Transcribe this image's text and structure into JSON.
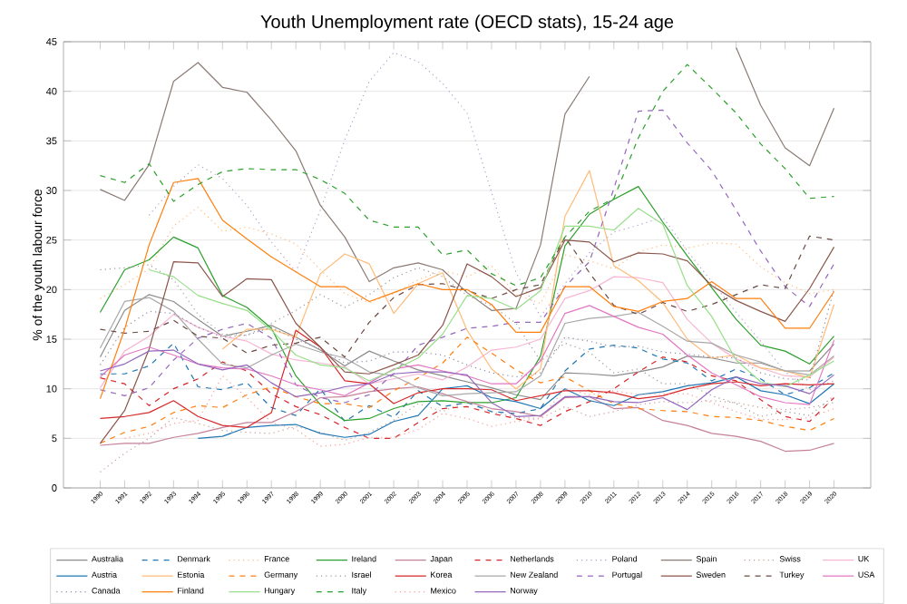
{
  "chart_data": {
    "type": "line",
    "title": "Youth Unemployment rate (OECD stats), 15-24 age",
    "ylabel": "% of the youth labour force",
    "x": [
      1990,
      1991,
      1992,
      1993,
      1994,
      1995,
      1996,
      1997,
      1998,
      1999,
      2000,
      2001,
      2002,
      2003,
      2004,
      2005,
      2006,
      2007,
      2008,
      2009,
      2010,
      2011,
      2012,
      2013,
      2014,
      2015,
      2016,
      2017,
      2018,
      2019,
      2020
    ],
    "xlim": [
      1988.5,
      2021.5
    ],
    "xticks": [
      1990,
      1991,
      1992,
      1993,
      1994,
      1995,
      1996,
      1997,
      1998,
      1999,
      2000,
      2001,
      2002,
      2003,
      2004,
      2005,
      2006,
      2007,
      2008,
      2009,
      2010,
      2011,
      2012,
      2013,
      2014,
      2015,
      2016,
      2017,
      2018,
      2019,
      2020
    ],
    "ylim": [
      0,
      45
    ],
    "yticks": [
      0,
      5,
      10,
      15,
      20,
      25,
      30,
      35,
      40,
      45
    ],
    "grid": "y",
    "legend": "bottom",
    "series": [
      {
        "name": "Australia",
        "color": "#8c8c8c",
        "line_style": "solid",
        "values": [
          13.2,
          17.9,
          19.5,
          18.8,
          17.0,
          15.3,
          15.8,
          16.4,
          15.2,
          13.9,
          12.3,
          13.8,
          12.8,
          11.9,
          11.3,
          10.7,
          10.1,
          9.4,
          8.9,
          11.6,
          11.5,
          11.3,
          11.7,
          12.2,
          13.3,
          13.1,
          12.6,
          12.6,
          11.8,
          11.8,
          14.5
        ]
      },
      {
        "name": "Austria",
        "color": "#1f77b4",
        "line_style": "solid",
        "values": [
          null,
          null,
          null,
          null,
          5.0,
          5.2,
          6.1,
          6.3,
          6.4,
          5.5,
          5.1,
          5.4,
          6.7,
          7.3,
          10.0,
          10.3,
          9.1,
          8.7,
          8.0,
          10.0,
          8.8,
          8.3,
          9.4,
          9.7,
          10.3,
          10.6,
          11.2,
          9.8,
          9.4,
          8.5,
          10.5
        ]
      },
      {
        "name": "Canada",
        "color": "#8a8aa6",
        "line_style": "dotted",
        "values": [
          12.4,
          16.2,
          17.8,
          17.6,
          16.2,
          15.2,
          15.4,
          16.2,
          15.0,
          14.0,
          12.6,
          12.8,
          13.7,
          13.7,
          13.4,
          12.4,
          11.6,
          11.2,
          11.6,
          15.2,
          14.8,
          14.2,
          14.3,
          13.7,
          13.5,
          13.2,
          13.1,
          11.6,
          11.0,
          10.9,
          20.1
        ]
      },
      {
        "name": "Denmark",
        "color": "#1f77b4",
        "line_style": "dashed",
        "values": [
          11.5,
          11.5,
          12.3,
          14.6,
          10.2,
          9.9,
          10.6,
          8.1,
          7.3,
          10.0,
          6.7,
          8.3,
          7.1,
          9.8,
          8.2,
          8.6,
          7.7,
          7.5,
          8.0,
          11.8,
          14.0,
          14.4,
          14.1,
          13.0,
          12.6,
          10.8,
          12.0,
          11.0,
          9.4,
          10.1,
          11.6
        ]
      },
      {
        "name": "Estonia",
        "color": "#ffbb78",
        "line_style": "solid",
        "values": [
          null,
          null,
          null,
          null,
          null,
          14.0,
          16.0,
          16.0,
          15.2,
          21.6,
          23.6,
          22.6,
          17.6,
          20.6,
          21.7,
          15.9,
          12.0,
          10.0,
          12.0,
          27.4,
          32.0,
          22.4,
          20.9,
          18.7,
          15.0,
          13.1,
          13.4,
          12.1,
          11.8,
          11.1,
          18.5
        ]
      },
      {
        "name": "Finland",
        "color": "#ff7f0e",
        "line_style": "solid",
        "values": [
          9.0,
          16.0,
          24.5,
          30.8,
          31.2,
          27.0,
          25.1,
          23.3,
          21.8,
          20.3,
          20.3,
          18.8,
          19.7,
          20.6,
          20.0,
          20.0,
          18.5,
          15.7,
          15.7,
          20.3,
          20.3,
          18.3,
          17.8,
          18.8,
          19.1,
          20.8,
          19.1,
          19.1,
          16.1,
          16.1,
          19.8
        ]
      },
      {
        "name": "France",
        "color": "#ffbb78",
        "line_style": "dotted",
        "values": [
          19.1,
          20.5,
          22.1,
          26.4,
          28.3,
          25.9,
          26.3,
          25.6,
          24.6,
          22.0,
          19.6,
          18.7,
          19.6,
          21.0,
          21.9,
          21.3,
          22.4,
          19.5,
          18.6,
          23.5,
          22.9,
          22.1,
          23.8,
          24.5,
          24.2,
          24.7,
          24.6,
          22.3,
          20.7,
          19.6,
          20.0
        ]
      },
      {
        "name": "Germany",
        "color": "#ff7f0e",
        "line_style": "dashed",
        "values": [
          4.5,
          5.6,
          6.2,
          7.6,
          8.3,
          8.1,
          9.4,
          10.2,
          9.2,
          8.5,
          8.5,
          8.1,
          9.8,
          11.1,
          12.6,
          15.2,
          13.6,
          11.9,
          10.6,
          11.2,
          9.8,
          8.5,
          8.0,
          7.8,
          7.7,
          7.2,
          7.1,
          6.8,
          6.2,
          5.8,
          7.0
        ]
      },
      {
        "name": "Hungary",
        "color": "#98df8a",
        "line_style": "solid",
        "values": [
          null,
          null,
          22.0,
          21.3,
          19.4,
          18.6,
          17.9,
          15.9,
          13.4,
          12.4,
          12.1,
          10.8,
          11.9,
          13.1,
          15.5,
          19.4,
          19.1,
          18.0,
          19.9,
          26.4,
          26.4,
          26.0,
          28.2,
          26.6,
          20.4,
          17.3,
          12.9,
          10.7,
          10.2,
          11.4,
          12.8
        ]
      },
      {
        "name": "Ireland",
        "color": "#2ca02c",
        "line_style": "solid",
        "values": [
          17.7,
          22.0,
          23.0,
          25.3,
          24.2,
          19.4,
          18.2,
          16.1,
          11.3,
          8.4,
          6.8,
          7.0,
          8.0,
          8.7,
          8.8,
          8.6,
          8.6,
          9.1,
          13.3,
          24.4,
          27.6,
          29.1,
          30.4,
          26.8,
          23.4,
          20.2,
          17.0,
          14.4,
          13.8,
          12.5,
          15.3
        ]
      },
      {
        "name": "Israel",
        "color": "#999999",
        "line_style": "dotted",
        "values": [
          22.0,
          22.2,
          22.5,
          21.0,
          17.5,
          15.5,
          15.4,
          16.6,
          17.9,
          19.5,
          18.2,
          19.5,
          21.2,
          22.2,
          21.3,
          19.4,
          18.4,
          16.6,
          12.8,
          14.6,
          13.7,
          11.6,
          12.0,
          10.5,
          10.5,
          9.3,
          8.5,
          7.2,
          7.7,
          7.3,
          9.3
        ]
      },
      {
        "name": "Italy",
        "color": "#2ca02c",
        "line_style": "dashed",
        "values": [
          31.5,
          30.8,
          32.7,
          28.9,
          30.6,
          31.9,
          32.2,
          32.1,
          32.1,
          31.1,
          29.7,
          27.0,
          26.3,
          26.3,
          23.5,
          24.0,
          21.6,
          20.4,
          21.2,
          25.3,
          27.9,
          29.2,
          35.3,
          40.0,
          42.7,
          40.3,
          37.8,
          34.7,
          32.2,
          29.2,
          29.4
        ]
      },
      {
        "name": "Japan",
        "color": "#c5809b",
        "line_style": "solid",
        "values": [
          4.3,
          4.5,
          4.5,
          5.1,
          5.5,
          6.1,
          6.6,
          6.6,
          7.7,
          9.1,
          9.2,
          9.7,
          10.0,
          10.2,
          9.5,
          8.7,
          8.0,
          7.7,
          7.2,
          9.1,
          9.2,
          8.0,
          8.1,
          6.8,
          6.3,
          5.5,
          5.2,
          4.7,
          3.7,
          3.8,
          4.5
        ]
      },
      {
        "name": "Korea",
        "color": "#d62728",
        "line_style": "solid",
        "values": [
          7.0,
          7.2,
          7.6,
          8.8,
          7.2,
          6.3,
          6.1,
          7.6,
          15.9,
          14.2,
          10.8,
          10.5,
          8.5,
          9.6,
          10.0,
          10.0,
          9.9,
          8.8,
          9.3,
          9.8,
          9.8,
          9.6,
          9.0,
          9.3,
          10.0,
          10.5,
          10.7,
          10.3,
          10.5,
          10.4,
          10.5
        ]
      },
      {
        "name": "Mexico",
        "color": "#ff9896",
        "line_style": "dotted",
        "values": [
          null,
          5.0,
          5.5,
          6.5,
          6.8,
          11.3,
          9.1,
          6.6,
          5.9,
          4.2,
          4.4,
          5.1,
          5.1,
          5.9,
          7.5,
          7.0,
          6.2,
          6.7,
          7.0,
          10.0,
          9.4,
          9.8,
          9.4,
          9.5,
          9.5,
          8.6,
          7.7,
          6.9,
          6.9,
          7.1,
          8.0
        ]
      },
      {
        "name": "Netherlands",
        "color": "#d62728",
        "line_style": "dashed",
        "values": [
          11.1,
          10.5,
          8.3,
          10.0,
          11.0,
          12.7,
          11.8,
          9.5,
          8.2,
          7.4,
          6.1,
          5.0,
          5.0,
          6.6,
          8.0,
          8.2,
          7.5,
          7.0,
          6.3,
          7.7,
          8.7,
          10.0,
          11.7,
          13.2,
          12.7,
          11.3,
          10.8,
          8.9,
          7.2,
          6.7,
          9.1
        ]
      },
      {
        "name": "New Zealand",
        "color": "#a8a8a8",
        "line_style": "solid",
        "values": [
          14.1,
          18.8,
          19.2,
          17.8,
          15.0,
          12.5,
          12.1,
          13.4,
          14.5,
          13.7,
          13.1,
          11.7,
          11.3,
          10.1,
          9.3,
          9.5,
          9.6,
          9.7,
          11.3,
          16.6,
          17.1,
          17.3,
          17.7,
          16.3,
          14.8,
          14.6,
          13.4,
          12.7,
          11.8,
          11.4,
          13.3
        ]
      },
      {
        "name": "Norway",
        "color": "#9467bd",
        "line_style": "solid",
        "values": [
          11.8,
          12.5,
          13.8,
          13.9,
          12.5,
          11.9,
          12.4,
          10.6,
          9.2,
          9.6,
          10.2,
          10.5,
          11.5,
          11.7,
          11.7,
          11.4,
          8.6,
          7.2,
          7.3,
          9.2,
          9.2,
          8.7,
          8.6,
          9.1,
          7.9,
          9.9,
          11.2,
          10.5,
          10.3,
          9.5,
          11.4
        ]
      },
      {
        "name": "Poland",
        "color": "#b0a0c8",
        "line_style": "dotted",
        "values": [
          null,
          null,
          27.5,
          30.4,
          32.6,
          31.2,
          28.5,
          24.8,
          21.8,
          28.0,
          35.1,
          41.0,
          43.9,
          43.0,
          40.8,
          37.8,
          29.8,
          21.7,
          17.3,
          20.6,
          23.7,
          25.8,
          26.5,
          27.3,
          23.9,
          20.8,
          17.7,
          14.8,
          11.7,
          9.9,
          10.8
        ]
      },
      {
        "name": "Portugal",
        "color": "#9467bd",
        "line_style": "dashed",
        "values": [
          9.9,
          9.3,
          10.1,
          12.9,
          15.1,
          16.0,
          16.6,
          15.1,
          10.4,
          9.1,
          8.6,
          9.4,
          11.5,
          14.4,
          15.2,
          16.1,
          16.3,
          16.7,
          16.7,
          20.3,
          22.8,
          30.2,
          38.0,
          38.1,
          34.8,
          32.0,
          28.0,
          23.9,
          20.3,
          18.3,
          22.6
        ]
      },
      {
        "name": "Spain",
        "color": "#8c7b75",
        "line_style": "solid",
        "values": [
          30.1,
          29.0,
          32.6,
          41.0,
          42.9,
          40.4,
          39.9,
          37.1,
          34.0,
          28.5,
          25.3,
          20.8,
          22.2,
          22.7,
          22.0,
          19.7,
          17.9,
          18.1,
          24.5,
          37.7,
          41.5,
          null,
          null,
          null,
          null,
          null,
          44.4,
          38.6,
          34.3,
          32.5,
          38.3
        ]
      },
      {
        "name": "Sweden",
        "color": "#8c564b",
        "line_style": "solid",
        "values": [
          4.5,
          7.8,
          14.0,
          22.8,
          22.7,
          19.3,
          21.1,
          21.0,
          16.6,
          14.2,
          11.7,
          11.5,
          12.4,
          13.4,
          16.4,
          22.6,
          21.3,
          19.3,
          20.2,
          25.0,
          24.8,
          22.8,
          23.7,
          23.6,
          22.9,
          20.4,
          18.9,
          17.8,
          16.8,
          20.1,
          24.3
        ]
      },
      {
        "name": "Swiss",
        "color": "#c49c94",
        "line_style": "dotted",
        "values": [
          1.6,
          3.5,
          5.0,
          7.1,
          6.5,
          5.8,
          5.6,
          5.5,
          6.2,
          5.6,
          4.8,
          5.6,
          6.8,
          8.5,
          7.7,
          8.8,
          7.7,
          7.1,
          7.0,
          8.2,
          7.2,
          7.7,
          8.4,
          8.7,
          8.6,
          8.8,
          8.6,
          8.1,
          7.9,
          8.1,
          8.6
        ]
      },
      {
        "name": "Turkey",
        "color": "#6b4a42",
        "line_style": "dashed",
        "values": [
          16.0,
          15.6,
          15.8,
          16.9,
          15.3,
          15.1,
          13.6,
          14.4,
          14.6,
          15.2,
          13.2,
          16.7,
          19.2,
          20.5,
          20.6,
          19.9,
          19.1,
          20.0,
          20.5,
          25.3,
          21.7,
          18.4,
          17.5,
          18.7,
          17.8,
          18.5,
          19.5,
          20.5,
          20.1,
          25.4,
          25.0
        ]
      },
      {
        "name": "UK",
        "color": "#f7b6d2",
        "line_style": "solid",
        "values": [
          10.1,
          13.8,
          15.3,
          17.5,
          16.2,
          15.3,
          14.8,
          13.5,
          12.9,
          12.6,
          12.2,
          10.5,
          11.0,
          11.5,
          10.9,
          12.2,
          13.9,
          14.2,
          15.0,
          19.1,
          19.9,
          21.3,
          21.2,
          20.7,
          17.0,
          14.6,
          13.0,
          12.1,
          11.3,
          11.2,
          13.2
        ]
      },
      {
        "name": "USA",
        "color": "#e377c2",
        "line_style": "solid",
        "values": [
          11.2,
          13.4,
          14.2,
          13.4,
          12.5,
          12.1,
          12.0,
          11.3,
          10.4,
          9.9,
          9.3,
          10.6,
          12.0,
          12.4,
          11.8,
          11.3,
          10.5,
          10.5,
          12.8,
          17.6,
          18.4,
          17.3,
          16.2,
          15.5,
          13.4,
          11.6,
          10.4,
          9.2,
          8.6,
          8.4,
          14.9
        ]
      }
    ]
  }
}
